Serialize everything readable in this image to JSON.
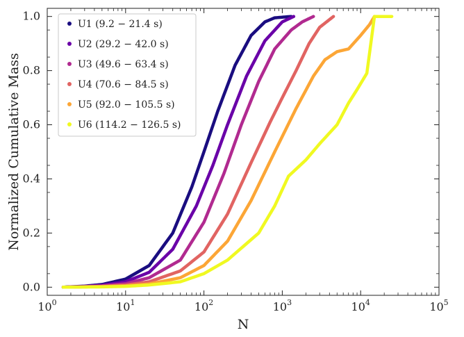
{
  "chart_data": {
    "type": "line",
    "title": "",
    "xlabel": "N",
    "ylabel": "Normalized Cumulative Mass",
    "x_scale": "log",
    "xlim": [
      1,
      100000
    ],
    "ylim": [
      -0.03,
      1.03
    ],
    "grid": false,
    "legend_position": "top-left",
    "x_ticks": [
      {
        "base": "10",
        "exp": "0"
      },
      {
        "base": "10",
        "exp": "1"
      },
      {
        "base": "10",
        "exp": "2"
      },
      {
        "base": "10",
        "exp": "3"
      },
      {
        "base": "10",
        "exp": "4"
      },
      {
        "base": "10",
        "exp": "5"
      }
    ],
    "y_ticks": [
      "0.0",
      "0.2",
      "0.4",
      "0.6",
      "0.8",
      "1.0"
    ],
    "series": [
      {
        "name": "U1 (9.2 − 21.4 s)",
        "color": "#1a0d80",
        "points": [
          [
            1.6,
            0.0
          ],
          [
            3,
            0.004
          ],
          [
            5,
            0.01
          ],
          [
            10,
            0.03
          ],
          [
            20,
            0.08
          ],
          [
            40,
            0.2
          ],
          [
            70,
            0.37
          ],
          [
            100,
            0.5
          ],
          [
            150,
            0.65
          ],
          [
            250,
            0.82
          ],
          [
            400,
            0.93
          ],
          [
            600,
            0.98
          ],
          [
            800,
            0.995
          ],
          [
            1300,
            1.0
          ]
        ]
      },
      {
        "name": "U2 (29.2 − 42.0 s)",
        "color": "#6a00a8",
        "points": [
          [
            1.6,
            0.0
          ],
          [
            3,
            0.003
          ],
          [
            5,
            0.007
          ],
          [
            10,
            0.02
          ],
          [
            20,
            0.055
          ],
          [
            40,
            0.14
          ],
          [
            80,
            0.3
          ],
          [
            130,
            0.45
          ],
          [
            200,
            0.6
          ],
          [
            350,
            0.78
          ],
          [
            600,
            0.91
          ],
          [
            1000,
            0.98
          ],
          [
            1400,
            1.0
          ]
        ]
      },
      {
        "name": "U3 (49.6 − 63.4 s)",
        "color": "#b12a90",
        "points": [
          [
            1.6,
            0.0
          ],
          [
            3,
            0.002
          ],
          [
            5,
            0.005
          ],
          [
            10,
            0.013
          ],
          [
            20,
            0.035
          ],
          [
            50,
            0.1
          ],
          [
            100,
            0.24
          ],
          [
            180,
            0.42
          ],
          [
            300,
            0.6
          ],
          [
            500,
            0.76
          ],
          [
            800,
            0.88
          ],
          [
            1300,
            0.95
          ],
          [
            1800,
            0.98
          ],
          [
            2500,
            1.0
          ]
        ]
      },
      {
        "name": "U4 (70.6 − 84.5 s)",
        "color": "#e16462",
        "points": [
          [
            1.6,
            0.0
          ],
          [
            5,
            0.003
          ],
          [
            10,
            0.008
          ],
          [
            20,
            0.02
          ],
          [
            50,
            0.06
          ],
          [
            100,
            0.13
          ],
          [
            200,
            0.27
          ],
          [
            400,
            0.46
          ],
          [
            700,
            0.61
          ],
          [
            1000,
            0.7
          ],
          [
            1500,
            0.8
          ],
          [
            2200,
            0.9
          ],
          [
            3000,
            0.96
          ],
          [
            4500,
            1.0
          ]
        ]
      },
      {
        "name": "U5 (92.0 − 105.5 s)",
        "color": "#fca636",
        "points": [
          [
            1.6,
            0.0
          ],
          [
            5,
            0.002
          ],
          [
            10,
            0.005
          ],
          [
            20,
            0.012
          ],
          [
            50,
            0.035
          ],
          [
            100,
            0.08
          ],
          [
            200,
            0.17
          ],
          [
            400,
            0.32
          ],
          [
            800,
            0.5
          ],
          [
            1500,
            0.66
          ],
          [
            2500,
            0.78
          ],
          [
            3500,
            0.84
          ],
          [
            5000,
            0.87
          ],
          [
            7000,
            0.88
          ],
          [
            10000,
            0.93
          ],
          [
            13000,
            0.97
          ],
          [
            15000,
            1.0
          ]
        ]
      },
      {
        "name": "U6 (114.2 − 126.5 s)",
        "color": "#f0f921",
        "points": [
          [
            1.6,
            0.0
          ],
          [
            5,
            0.001
          ],
          [
            10,
            0.003
          ],
          [
            20,
            0.008
          ],
          [
            50,
            0.02
          ],
          [
            100,
            0.05
          ],
          [
            200,
            0.1
          ],
          [
            500,
            0.2
          ],
          [
            800,
            0.3
          ],
          [
            1200,
            0.41
          ],
          [
            2000,
            0.47
          ],
          [
            3000,
            0.53
          ],
          [
            5000,
            0.6
          ],
          [
            7000,
            0.68
          ],
          [
            9000,
            0.73
          ],
          [
            12000,
            0.79
          ],
          [
            15000,
            1.0
          ],
          [
            25000,
            1.0
          ]
        ]
      }
    ]
  }
}
